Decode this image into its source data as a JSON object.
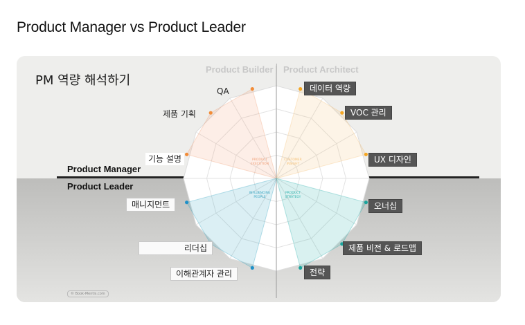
{
  "page": {
    "heading": "Product Manager vs Product Leader"
  },
  "diagram": {
    "title": "PM 역량 해석하기",
    "header_left": "Product Builder",
    "header_separator": "|",
    "header_right": "Product Architect",
    "band_top": "Product Manager",
    "band_bottom": "Product Leader",
    "watermark": "© Book-Mentis.com",
    "quadrants": [
      {
        "label_line1": "PRODUCT",
        "label_line2": "EXECUTION",
        "color": "#f2a27a"
      },
      {
        "label_line1": "CUSTOMER",
        "label_line2": "INSIGHT",
        "color": "#f5c27a"
      },
      {
        "label_line1": "INFLUENCING",
        "label_line2": "PEOPLE",
        "color": "#3aa6c2"
      },
      {
        "label_line1": "PRODUCT",
        "label_line2": "STRATEGY",
        "color": "#2fb3ae"
      }
    ],
    "competencies": [
      {
        "label": "QA",
        "style": "plain",
        "dot_color": "#f28c38"
      },
      {
        "label": "제품 기획",
        "style": "plain",
        "dot_color": "#f28c38"
      },
      {
        "label": "기능 설명",
        "style": "plain",
        "dot_color": "#f28c38"
      },
      {
        "label": "데이터 역량",
        "style": "dark",
        "dot_color": "#f5a623"
      },
      {
        "label": "VOC 관리",
        "style": "dark",
        "dot_color": "#f5a623"
      },
      {
        "label": "UX 디자인",
        "style": "dark",
        "dot_color": "#f5a623"
      },
      {
        "label": "매니지먼트",
        "style": "boxed",
        "dot_color": "#1e90c8"
      },
      {
        "label": "리더십",
        "style": "boxed",
        "dot_color": "#1e90c8"
      },
      {
        "label": "이해관계자 관리",
        "style": "boxed",
        "dot_color": "#1e90c8"
      },
      {
        "label": "오너십",
        "style": "dark",
        "dot_color": "#1aa39b"
      },
      {
        "label": "제품 비전 & 로드맵",
        "style": "dark",
        "dot_color": "#1aa39b"
      },
      {
        "label": "전략",
        "style": "dark",
        "dot_color": "#1aa39b"
      }
    ]
  }
}
